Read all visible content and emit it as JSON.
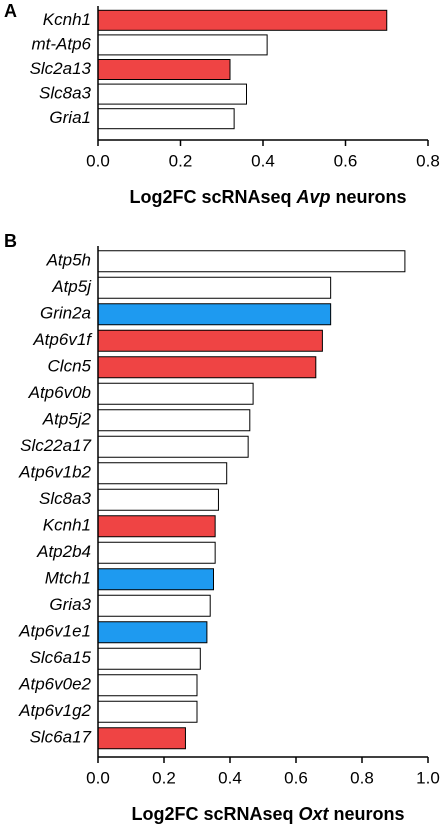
{
  "chart_data": [
    {
      "type": "barh",
      "panel": "A",
      "x_label": [
        "Log2FC scRNAseq",
        "Avp",
        "neurons"
      ],
      "categories": [
        "Kcnh1",
        "mt-Atp6",
        "Slc2a13",
        "Slc8a3",
        "Gria1"
      ],
      "values": [
        0.7,
        0.41,
        0.32,
        0.36,
        0.33
      ],
      "colors": [
        "#ef4444",
        "#ffffff",
        "#ef4444",
        "#ffffff",
        "#ffffff"
      ],
      "xlim": [
        0,
        0.8
      ],
      "xticks": [
        {
          "value": 0,
          "label": "0.0"
        },
        0.2,
        0.4,
        0.6,
        0.8
      ]
    },
    {
      "type": "barh",
      "panel": "B",
      "x_label": [
        "Log2FC scRNAseq",
        "Oxt",
        "neurons"
      ],
      "categories": [
        "Atp5h",
        "Atp5j",
        "Grin2a",
        "Atp6v1f",
        "Clcn5",
        "Atp6v0b",
        "Atp5j2",
        "Slc22a17",
        "Atp6v1b2",
        "Slc8a3",
        "Kcnh1",
        "Atp2b4",
        "Mtch1",
        "Gria3",
        "Atp6v1e1",
        "Slc6a15",
        "Atp6v0e2",
        "Atp6v1g2",
        "Slc6a17"
      ],
      "values": [
        0.93,
        0.705,
        0.705,
        0.68,
        0.66,
        0.47,
        0.46,
        0.455,
        0.39,
        0.365,
        0.355,
        0.355,
        0.35,
        0.34,
        0.33,
        0.31,
        0.3,
        0.3,
        0.265
      ],
      "colors": [
        "#ffffff",
        "#ffffff",
        "#1e9af0",
        "#ef4444",
        "#ef4444",
        "#ffffff",
        "#ffffff",
        "#ffffff",
        "#ffffff",
        "#ffffff",
        "#ef4444",
        "#ffffff",
        "#1e9af0",
        "#ffffff",
        "#1e9af0",
        "#ffffff",
        "#ffffff",
        "#ffffff",
        "#ef4444"
      ],
      "xlim": [
        0,
        1
      ],
      "xticks": [
        {
          "value": 0,
          "label": "0.0"
        },
        0.2,
        0.4,
        0.6,
        0.8,
        {
          "value": 1,
          "label": "1.0"
        }
      ]
    }
  ]
}
